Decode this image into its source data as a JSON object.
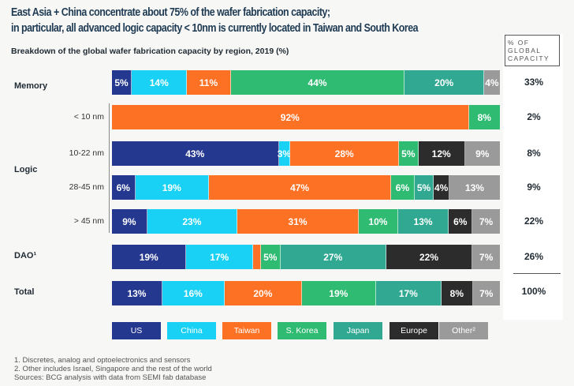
{
  "title_line1": "East Asia + China concentrate about 75% of the wafer fabrication capacity;",
  "title_line2": "in particular, all advanced logic capacity < 10nm is currently located in Taiwan and South Korea",
  "subtitle": "Breakdown of the global wafer fabrication capacity by region, 2019 (%)",
  "global_capacity_header": "% OF\nGLOBAL\nCAPACITY",
  "group_labels": {
    "memory": "Memory",
    "logic": "Logic",
    "dao": "DAO¹",
    "total": "Total"
  },
  "footnotes": [
    "1. Discretes, analog and optoelectronics and sensors",
    "2. Other includes Israel, Singapore and the rest of the world",
    "Sources: BCG analysis with data from SEMI fab database"
  ],
  "colors": {
    "US": "#24388f",
    "China": "#19d1f4",
    "Taiwan": "#fd7125",
    "S. Korea": "#2fbb72",
    "Japan": "#31a892",
    "Europe": "#2c2c2c",
    "Other²": "#9a9a9a"
  },
  "chart_data": {
    "type": "bar",
    "orientation": "horizontal",
    "stacked": true,
    "normalized": true,
    "title": "East Asia + China concentrate about 75% of the wafer fabrication capacity; in particular, all advanced logic capacity < 10nm is currently located in Taiwan and South Korea",
    "subtitle": "Breakdown of the global wafer fabrication capacity by region, 2019 (%)",
    "legend_position": "bottom",
    "series_names": [
      "US",
      "China",
      "Taiwan",
      "S. Korea",
      "Japan",
      "Europe",
      "Other²"
    ],
    "rows": [
      {
        "group": "Memory",
        "label": "",
        "global_capacity": "33%",
        "values": [
          5,
          14,
          11,
          44,
          20,
          0,
          4
        ]
      },
      {
        "group": "Logic",
        "label": "< 10 nm",
        "global_capacity": "2%",
        "values": [
          0,
          0,
          92,
          8,
          0,
          0,
          0
        ]
      },
      {
        "group": "Logic",
        "label": "10-22 nm",
        "global_capacity": "8%",
        "values": [
          43,
          3,
          28,
          5,
          0,
          12,
          9
        ]
      },
      {
        "group": "Logic",
        "label": "28-45 nm",
        "global_capacity": "9%",
        "values": [
          6,
          19,
          47,
          6,
          5,
          4,
          13
        ]
      },
      {
        "group": "Logic",
        "label": "> 45 nm",
        "global_capacity": "22%",
        "values": [
          9,
          23,
          31,
          10,
          13,
          6,
          7
        ]
      },
      {
        "group": "DAO¹",
        "label": "",
        "global_capacity": "26%",
        "values": [
          19,
          17,
          2,
          5,
          27,
          22,
          7
        ]
      },
      {
        "group": "Total",
        "label": "",
        "global_capacity": "100%",
        "values": [
          13,
          16,
          20,
          19,
          17,
          8,
          7
        ]
      }
    ],
    "segment_labels": [
      [
        "5%",
        "14%",
        "11%",
        "44%",
        "20%",
        "",
        "4%"
      ],
      [
        "",
        "",
        "92%",
        "8%",
        "",
        "",
        ""
      ],
      [
        "43%",
        "3%",
        "28%",
        "5%",
        "",
        "12%",
        "9%"
      ],
      [
        "6%",
        "19%",
        "47%",
        "6%",
        "5%",
        "4%",
        "13%"
      ],
      [
        "9%",
        "23%",
        "31%",
        "10%",
        "13%",
        "6%",
        "7%"
      ],
      [
        "19%",
        "17%",
        "",
        "5%",
        "27%",
        "22%",
        "7%"
      ],
      [
        "13%",
        "16%",
        "20%",
        "19%",
        "17%",
        "8%",
        "7%"
      ]
    ]
  }
}
